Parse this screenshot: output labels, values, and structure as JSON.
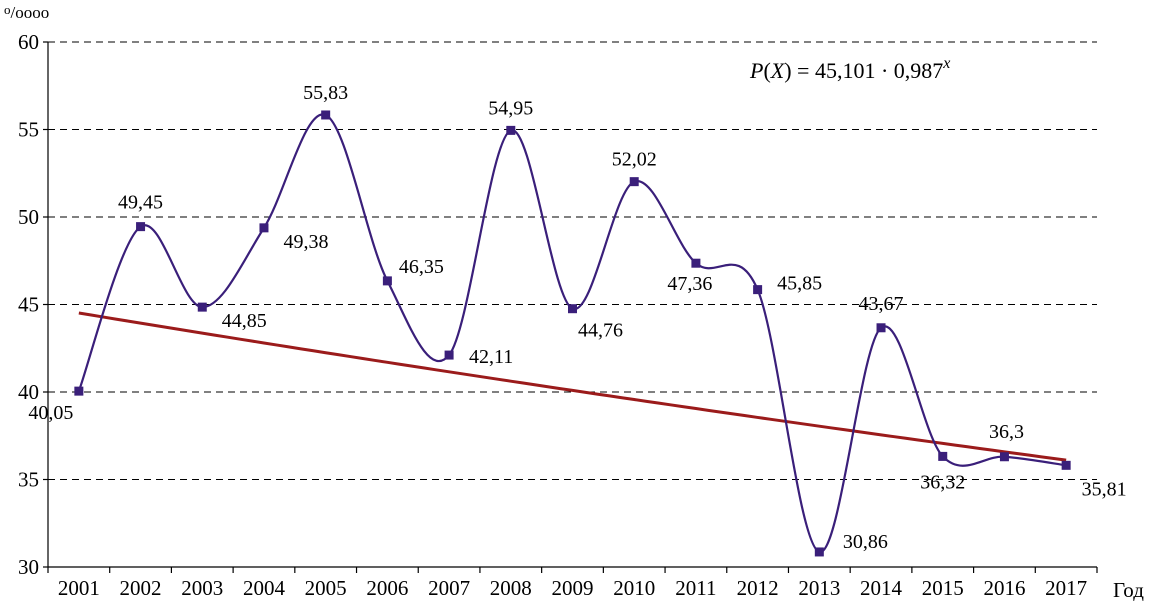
{
  "chart_data": {
    "type": "line",
    "ylabel_unit": "⁰/₀₀₀₀",
    "ylabel_unit_sup": "o",
    "ylabel_unit_rest": "/oooo",
    "xlabel": "Год",
    "ylim": [
      30,
      60
    ],
    "yticks": [
      30,
      35,
      40,
      45,
      50,
      55,
      60
    ],
    "grid": "horizontal-dashed",
    "categories": [
      "2001",
      "2002",
      "2003",
      "2004",
      "2005",
      "2006",
      "2007",
      "2008",
      "2009",
      "2010",
      "2011",
      "2012",
      "2013",
      "2014",
      "2015",
      "2016",
      "2017"
    ],
    "series": [
      {
        "values": [
          40.05,
          49.45,
          44.85,
          49.38,
          55.83,
          46.35,
          42.11,
          54.95,
          44.76,
          52.02,
          47.36,
          45.85,
          30.86,
          43.67,
          36.32,
          36.3,
          35.81
        ],
        "labels": [
          "40,05",
          "49,45",
          "44,85",
          "49,38",
          "55,83",
          "46,35",
          "42,11",
          "54,95",
          "44,76",
          "52,02",
          "47,36",
          "45,85",
          "30,86",
          "43,67",
          "36,32",
          "36,3",
          "35,81"
        ],
        "color": "#3a1f7a",
        "marker": "square",
        "smooth": true
      }
    ],
    "trend": {
      "formula_prefix": "P(X) = 45,101 · 0,987",
      "formula_p": "P",
      "formula_mid": "(",
      "formula_x": "X",
      "formula_rest": ") = 45,101 · 0,987",
      "formula_exp": "x",
      "a": 45.101,
      "b": 0.987,
      "color": "#9b1b1b"
    }
  }
}
